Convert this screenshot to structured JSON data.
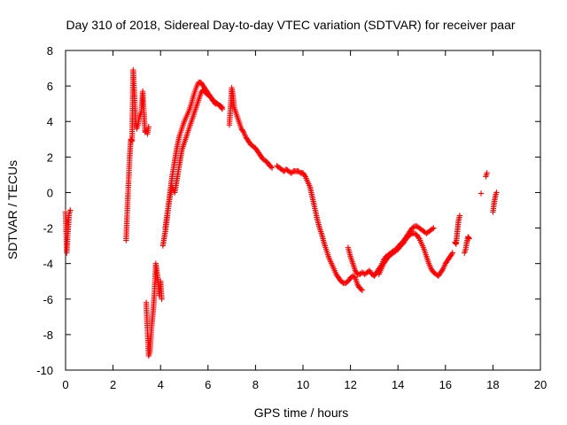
{
  "chart_data": {
    "type": "scatter",
    "title": "Day 310 of 2018, Sidereal Day-to-day VTEC variation (SDTVAR) for receiver paar",
    "xlabel": "GPS time / hours",
    "ylabel": "SDTVAR / TECUs",
    "xlim": [
      0,
      20
    ],
    "ylim": [
      -10,
      8
    ],
    "xticks": [
      0,
      2,
      4,
      6,
      8,
      10,
      12,
      14,
      16,
      18,
      20
    ],
    "yticks": [
      -10,
      -8,
      -6,
      -4,
      -2,
      0,
      2,
      4,
      6,
      8
    ],
    "grid": false,
    "marker": "+",
    "color": "#ff0000",
    "series": [
      {
        "name": "SDTVAR",
        "segments": [
          {
            "x": [
              0.0,
              0.05,
              0.1,
              0.15,
              0.2
            ],
            "y": [
              -1.1,
              -3.4,
              -2.2,
              -1.2,
              -1.0
            ]
          },
          {
            "x": [
              2.55,
              2.6,
              2.65,
              2.7,
              2.75,
              2.8,
              2.85,
              2.9,
              2.95,
              3.0,
              3.05,
              3.1,
              3.15,
              3.2,
              3.25,
              3.3,
              3.35,
              3.4,
              3.45,
              3.5
            ],
            "y": [
              -2.7,
              -1.0,
              0.5,
              2.0,
              3.0,
              2.9,
              6.9,
              5.5,
              4.0,
              3.6,
              3.8,
              4.2,
              4.4,
              4.6,
              5.7,
              4.5,
              3.4,
              3.5,
              3.3,
              3.7
            ]
          },
          {
            "x": [
              3.4,
              3.45,
              3.5,
              3.55,
              3.6,
              3.65,
              3.7,
              3.75,
              3.8,
              3.85,
              3.9,
              3.95,
              4.0,
              4.05
            ],
            "y": [
              -6.2,
              -7.8,
              -9.2,
              -9.0,
              -8.0,
              -7.2,
              -6.5,
              -5.5,
              -4.0,
              -4.5,
              -5.0,
              -5.8,
              -5.0,
              -6.0
            ]
          },
          {
            "x": [
              4.1,
              4.2,
              4.3,
              4.4,
              4.5,
              4.6,
              4.7,
              4.8,
              4.9,
              5.0,
              5.1,
              5.2,
              5.3,
              5.4,
              5.5,
              5.6,
              5.7,
              5.8,
              5.9,
              6.0,
              6.1,
              6.2,
              6.3,
              6.4,
              6.5,
              6.6
            ],
            "y": [
              -3.0,
              -2.2,
              -1.2,
              0.0,
              1.0,
              1.8,
              2.6,
              3.2,
              3.6,
              4.0,
              4.3,
              4.6,
              5.0,
              5.5,
              5.9,
              6.2,
              6.2,
              6.0,
              5.8,
              5.6,
              5.4,
              5.2,
              5.1,
              5.0,
              4.9,
              4.8
            ]
          },
          {
            "x": [
              4.2,
              4.3,
              4.4,
              4.5,
              4.6,
              4.7,
              4.8,
              4.9,
              5.0,
              5.1,
              5.2,
              5.3,
              5.4,
              5.5,
              5.6,
              5.7,
              5.8,
              5.9,
              6.0,
              6.1,
              6.2,
              6.3,
              6.4,
              6.5,
              6.6
            ],
            "y": [
              -2.0,
              -1.0,
              -0.2,
              0.3,
              0.0,
              0.8,
              1.6,
              2.4,
              2.8,
              3.2,
              3.6,
              4.0,
              4.4,
              4.8,
              5.2,
              5.6,
              5.8,
              5.6,
              5.5,
              5.4,
              5.2,
              5.0,
              5.0,
              4.9,
              4.7
            ]
          },
          {
            "x": [
              6.9,
              7.0,
              7.05,
              7.1,
              7.2,
              7.3,
              7.4,
              7.5,
              7.6,
              7.7,
              7.8,
              7.9,
              8.0,
              8.1,
              8.2,
              8.3,
              8.4,
              8.5,
              8.6,
              8.7
            ],
            "y": [
              3.8,
              5.9,
              5.5,
              4.8,
              4.4,
              4.0,
              3.6,
              3.4,
              3.1,
              2.9,
              2.7,
              2.6,
              2.5,
              2.3,
              2.1,
              1.9,
              1.8,
              1.7,
              1.5,
              1.4
            ]
          },
          {
            "x": [
              8.9,
              9.0,
              9.1,
              9.2,
              9.3,
              9.4,
              9.5,
              9.6,
              9.7,
              9.8,
              9.9,
              10.0,
              10.1,
              10.2,
              10.3,
              10.4,
              10.5,
              10.6,
              10.7,
              10.8,
              10.9,
              11.0,
              11.1,
              11.2,
              11.3,
              11.4,
              11.5,
              11.6,
              11.7,
              11.8,
              11.9,
              12.0,
              12.1,
              12.2,
              12.3,
              12.4,
              12.5
            ],
            "y": [
              1.5,
              1.4,
              1.3,
              1.2,
              1.3,
              1.2,
              1.1,
              1.2,
              1.2,
              1.2,
              1.1,
              1.1,
              0.9,
              0.6,
              0.3,
              -0.3,
              -0.9,
              -1.5,
              -2.0,
              -2.4,
              -2.9,
              -3.3,
              -3.7,
              -4.0,
              -4.3,
              -4.6,
              -4.8,
              -5.0,
              -5.1,
              -5.1,
              -5.0,
              -4.8,
              -4.7,
              -4.8,
              -5.2,
              -5.4,
              -5.5
            ]
          },
          {
            "x": [
              11.9,
              12.0,
              12.1,
              12.2,
              12.3,
              12.4,
              12.5,
              12.6,
              12.7,
              12.8,
              12.9,
              13.0,
              13.1,
              13.2,
              13.3,
              13.4,
              13.5,
              13.6,
              13.7,
              13.8,
              13.9,
              14.0,
              14.1,
              14.2,
              14.3,
              14.4,
              14.5,
              14.6,
              14.7,
              14.8,
              14.9,
              15.0,
              15.1,
              15.2,
              15.3,
              15.4,
              15.5
            ],
            "y": [
              -3.1,
              -3.6,
              -4.0,
              -4.4,
              -4.6,
              -4.6,
              -4.5,
              -4.6,
              -4.5,
              -4.4,
              -4.6,
              -4.7,
              -4.5,
              -4.3,
              -4.1,
              -3.8,
              -3.6,
              -3.5,
              -3.4,
              -3.3,
              -3.2,
              -3.1,
              -2.9,
              -2.8,
              -2.6,
              -2.4,
              -2.2,
              -2.0,
              -1.9,
              -1.9,
              -2.0,
              -2.1,
              -2.2,
              -2.3,
              -2.2,
              -2.1,
              -2.0
            ]
          },
          {
            "x": [
              13.2,
              13.3,
              13.4,
              13.5,
              13.6,
              13.7,
              13.8,
              13.9,
              14.0,
              14.1,
              14.2,
              14.3,
              14.4,
              14.5,
              14.6,
              14.7,
              14.8,
              14.9,
              15.0,
              15.1,
              15.2,
              15.3,
              15.4,
              15.5,
              15.6,
              15.7,
              15.8,
              15.9,
              16.0,
              16.1,
              16.2,
              16.3
            ],
            "y": [
              -4.6,
              -4.3,
              -4.0,
              -3.8,
              -3.6,
              -3.5,
              -3.4,
              -3.3,
              -3.2,
              -3.0,
              -2.9,
              -2.7,
              -2.5,
              -2.4,
              -2.3,
              -2.3,
              -2.4,
              -2.6,
              -2.9,
              -3.2,
              -3.6,
              -4.0,
              -4.3,
              -4.5,
              -4.6,
              -4.7,
              -4.5,
              -4.3,
              -4.0,
              -3.8,
              -3.6,
              -3.4
            ]
          },
          {
            "x": [
              16.4,
              16.45,
              16.5,
              16.55,
              16.6
            ],
            "y": [
              -2.8,
              -2.9,
              -2.2,
              -1.6,
              -1.3
            ]
          },
          {
            "x": [
              16.8,
              16.85,
              16.9,
              16.95,
              17.0
            ],
            "y": [
              -3.4,
              -3.2,
              -2.8,
              -2.5,
              -2.6
            ]
          },
          {
            "x": [
              17.5
            ],
            "y": [
              -0.05
            ]
          },
          {
            "x": [
              17.7,
              17.75
            ],
            "y": [
              0.9,
              1.1
            ]
          },
          {
            "x": [
              18.0,
              18.03,
              18.06,
              18.09,
              18.12,
              18.15
            ],
            "y": [
              -1.1,
              -0.8,
              -0.5,
              -0.3,
              -0.1,
              0.0
            ]
          }
        ]
      }
    ]
  }
}
